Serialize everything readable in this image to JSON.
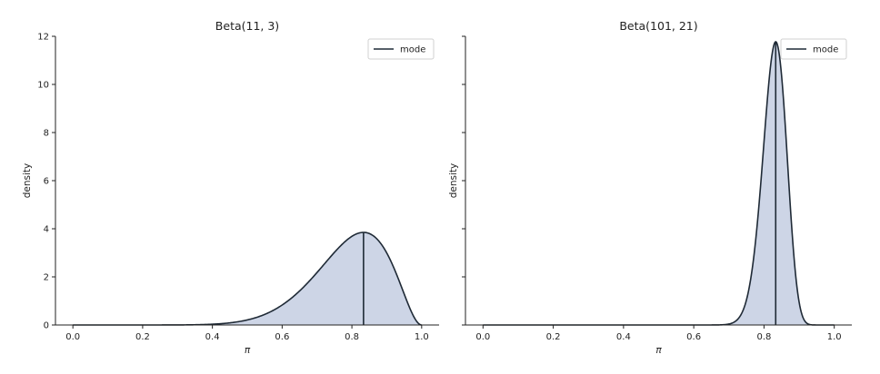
{
  "colors": {
    "fill": "#cdd5e6",
    "curve": "#1f2a36",
    "mode_line": "#1f2a36",
    "axis": "#222222"
  },
  "chart_data": [
    {
      "type": "area",
      "title": "Beta(11, 3)",
      "alpha": 11,
      "beta": 3,
      "mode": 0.8333,
      "xlabel": "π",
      "ylabel": "density",
      "xlim": [
        -0.05,
        1.05
      ],
      "ylim": [
        0,
        12
      ],
      "x_ticks": [
        "0.0",
        "0.2",
        "0.4",
        "0.6",
        "0.8",
        "1.0"
      ],
      "y_ticks": [
        "0",
        "2",
        "4",
        "6",
        "8",
        "10",
        "12"
      ],
      "show_y_tick_labels": true,
      "legend": {
        "label": "mode",
        "placement": "upper-right"
      },
      "grid": false
    },
    {
      "type": "area",
      "title": "Beta(101, 21)",
      "alpha": 101,
      "beta": 21,
      "mode": 0.8333,
      "xlabel": "π",
      "ylabel": "density",
      "xlim": [
        -0.05,
        1.05
      ],
      "ylim": [
        0,
        12
      ],
      "x_ticks": [
        "0.0",
        "0.2",
        "0.4",
        "0.6",
        "0.8",
        "1.0"
      ],
      "y_ticks": [
        "0",
        "2",
        "4",
        "6",
        "8",
        "10",
        "12"
      ],
      "show_y_tick_labels": false,
      "legend": {
        "label": "mode",
        "placement": "upper-right"
      },
      "grid": false
    }
  ]
}
